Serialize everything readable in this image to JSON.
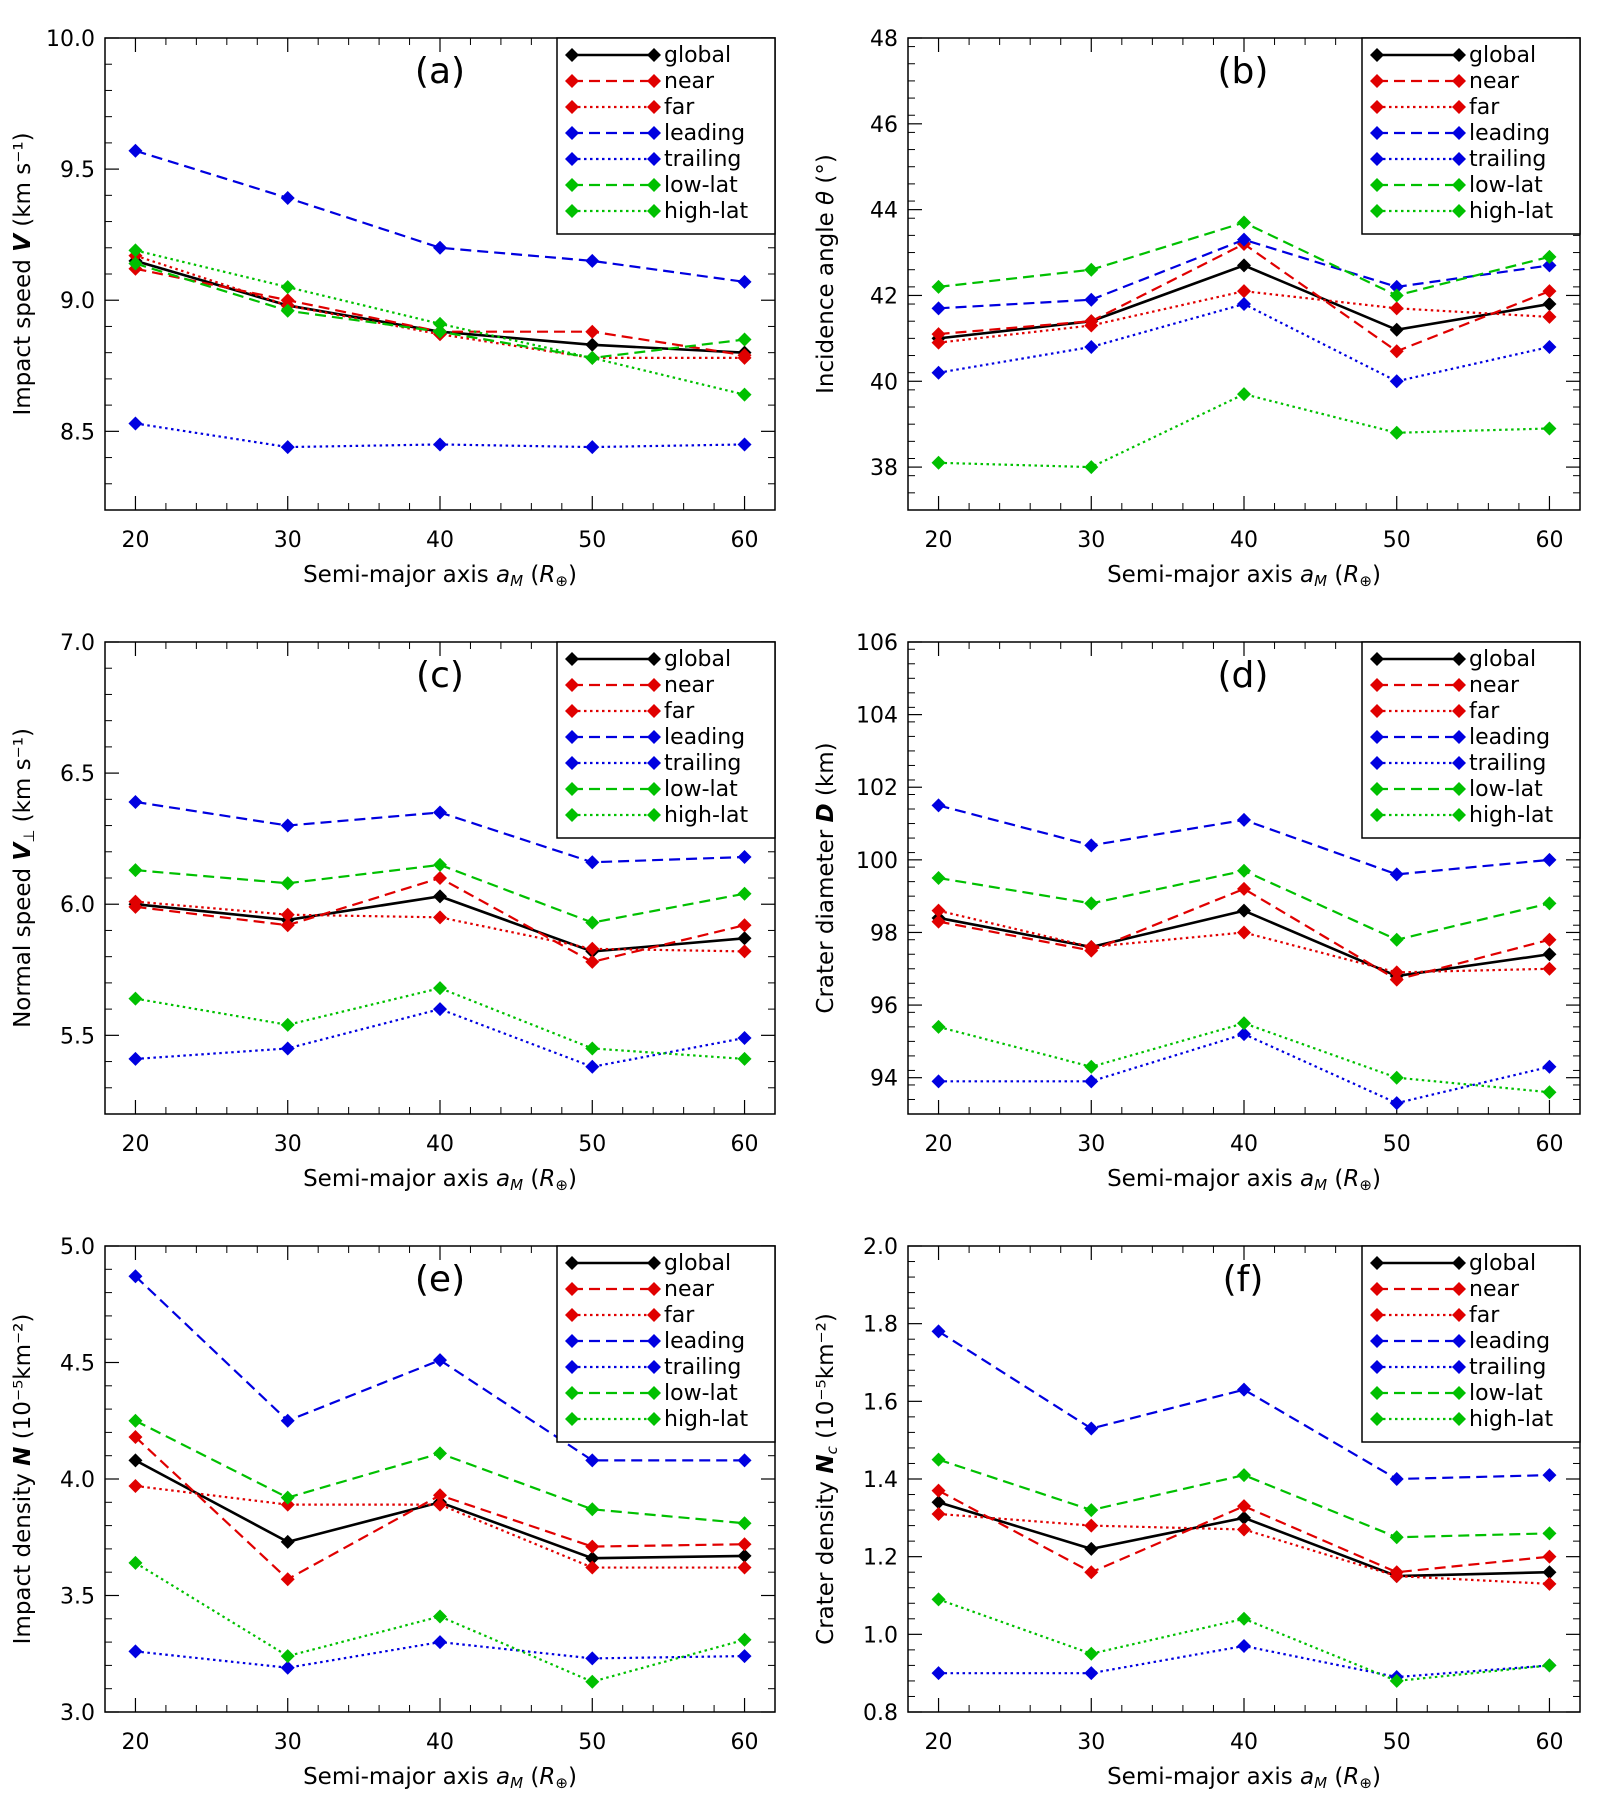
{
  "figure": {
    "legend_placement": "top-right",
    "series_styles": [
      {
        "name": "global",
        "color": "#000000",
        "dash": "solid"
      },
      {
        "name": "near",
        "color": "#e00000",
        "dash": "dashed"
      },
      {
        "name": "far",
        "color": "#e00000",
        "dash": "dotted"
      },
      {
        "name": "leading",
        "color": "#0000e0",
        "dash": "dashed"
      },
      {
        "name": "trailing",
        "color": "#0000e0",
        "dash": "dotted"
      },
      {
        "name": "low-lat",
        "color": "#00c000",
        "dash": "dashed"
      },
      {
        "name": "high-lat",
        "color": "#00c000",
        "dash": "dotted"
      }
    ]
  },
  "chart_data": [
    {
      "type": "line",
      "panel": "(a)",
      "xlabel": "Semi-major axis a_M (R_⊕)",
      "ylabel": "Impact speed V (km s⁻¹)",
      "x": [
        20,
        30,
        40,
        50,
        60
      ],
      "xlim": [
        18,
        62
      ],
      "ylim": [
        8.2,
        10.0
      ],
      "xticks": [
        "20",
        "30",
        "40",
        "50",
        "60"
      ],
      "yticks": [
        "8.5",
        "9.0",
        "9.5",
        "10.0"
      ],
      "series": [
        {
          "name": "global",
          "values": [
            9.15,
            8.98,
            8.88,
            8.83,
            8.8
          ]
        },
        {
          "name": "near",
          "values": [
            9.12,
            9.0,
            8.88,
            8.88,
            8.79
          ]
        },
        {
          "name": "far",
          "values": [
            9.17,
            8.98,
            8.87,
            8.78,
            8.78
          ]
        },
        {
          "name": "leading",
          "values": [
            9.57,
            9.39,
            9.2,
            9.15,
            9.07
          ]
        },
        {
          "name": "trailing",
          "values": [
            8.53,
            8.44,
            8.45,
            8.44,
            8.45
          ]
        },
        {
          "name": "low-lat",
          "values": [
            9.14,
            8.96,
            8.88,
            8.78,
            8.85
          ]
        },
        {
          "name": "high-lat",
          "values": [
            9.19,
            9.05,
            8.91,
            8.78,
            8.64
          ]
        }
      ]
    },
    {
      "type": "line",
      "panel": "(b)",
      "xlabel": "Semi-major axis a_M (R_⊕)",
      "ylabel": "Incidence angle θ (°)",
      "x": [
        20,
        30,
        40,
        50,
        60
      ],
      "xlim": [
        18,
        62
      ],
      "ylim": [
        37,
        48
      ],
      "xticks": [
        "20",
        "30",
        "40",
        "50",
        "60"
      ],
      "yticks": [
        "38",
        "40",
        "42",
        "44",
        "46",
        "48"
      ],
      "series": [
        {
          "name": "global",
          "values": [
            41.0,
            41.4,
            42.7,
            41.2,
            41.8
          ]
        },
        {
          "name": "near",
          "values": [
            41.1,
            41.4,
            43.2,
            40.7,
            42.1
          ]
        },
        {
          "name": "far",
          "values": [
            40.9,
            41.3,
            42.1,
            41.7,
            41.5
          ]
        },
        {
          "name": "leading",
          "values": [
            41.7,
            41.9,
            43.3,
            42.2,
            42.7
          ]
        },
        {
          "name": "trailing",
          "values": [
            40.2,
            40.8,
            41.8,
            40.0,
            40.8
          ]
        },
        {
          "name": "low-lat",
          "values": [
            42.2,
            42.6,
            43.7,
            42.0,
            42.9
          ]
        },
        {
          "name": "high-lat",
          "values": [
            38.1,
            38.0,
            39.7,
            38.8,
            38.9
          ]
        }
      ]
    },
    {
      "type": "line",
      "panel": "(c)",
      "xlabel": "Semi-major axis a_M (R_⊕)",
      "ylabel": "Normal speed V⊥ (km s⁻¹)",
      "x": [
        20,
        30,
        40,
        50,
        60
      ],
      "xlim": [
        18,
        62
      ],
      "ylim": [
        5.2,
        7.0
      ],
      "xticks": [
        "20",
        "30",
        "40",
        "50",
        "60"
      ],
      "yticks": [
        "5.5",
        "6.0",
        "6.5",
        "7.0"
      ],
      "series": [
        {
          "name": "global",
          "values": [
            6.0,
            5.94,
            6.03,
            5.82,
            5.87
          ]
        },
        {
          "name": "near",
          "values": [
            5.99,
            5.92,
            6.1,
            5.78,
            5.92
          ]
        },
        {
          "name": "far",
          "values": [
            6.01,
            5.96,
            5.95,
            5.83,
            5.82
          ]
        },
        {
          "name": "leading",
          "values": [
            6.39,
            6.3,
            6.35,
            6.16,
            6.18
          ]
        },
        {
          "name": "trailing",
          "values": [
            5.41,
            5.45,
            5.6,
            5.38,
            5.49
          ]
        },
        {
          "name": "low-lat",
          "values": [
            6.13,
            6.08,
            6.15,
            5.93,
            6.04
          ]
        },
        {
          "name": "high-lat",
          "values": [
            5.64,
            5.54,
            5.68,
            5.45,
            5.41
          ]
        }
      ]
    },
    {
      "type": "line",
      "panel": "(d)",
      "xlabel": "Semi-major axis a_M (R_⊕)",
      "ylabel": "Crater diameter D (km)",
      "x": [
        20,
        30,
        40,
        50,
        60
      ],
      "xlim": [
        18,
        62
      ],
      "ylim": [
        93,
        106
      ],
      "xticks": [
        "20",
        "30",
        "40",
        "50",
        "60"
      ],
      "yticks": [
        "94",
        "96",
        "98",
        "100",
        "102",
        "104",
        "106"
      ],
      "series": [
        {
          "name": "global",
          "values": [
            98.4,
            97.6,
            98.6,
            96.8,
            97.4
          ]
        },
        {
          "name": "near",
          "values": [
            98.3,
            97.5,
            99.2,
            96.7,
            97.8
          ]
        },
        {
          "name": "far",
          "values": [
            98.6,
            97.6,
            98.0,
            96.9,
            97.0
          ]
        },
        {
          "name": "leading",
          "values": [
            101.5,
            100.4,
            101.1,
            99.6,
            100.0
          ]
        },
        {
          "name": "trailing",
          "values": [
            93.9,
            93.9,
            95.2,
            93.3,
            94.3
          ]
        },
        {
          "name": "low-lat",
          "values": [
            99.5,
            98.8,
            99.7,
            97.8,
            98.8
          ]
        },
        {
          "name": "high-lat",
          "values": [
            95.4,
            94.3,
            95.5,
            94.0,
            93.6
          ]
        }
      ]
    },
    {
      "type": "line",
      "panel": "(e)",
      "xlabel": "Semi-major axis a_M (R_⊕)",
      "ylabel": "Impact density N (10⁻⁵km⁻²)",
      "x": [
        20,
        30,
        40,
        50,
        60
      ],
      "xlim": [
        18,
        62
      ],
      "ylim": [
        3.0,
        5.0
      ],
      "xticks": [
        "20",
        "30",
        "40",
        "50",
        "60"
      ],
      "yticks": [
        "3.0",
        "3.5",
        "4.0",
        "4.5",
        "5.0"
      ],
      "series": [
        {
          "name": "global",
          "values": [
            4.08,
            3.73,
            3.9,
            3.66,
            3.67
          ]
        },
        {
          "name": "near",
          "values": [
            4.18,
            3.57,
            3.93,
            3.71,
            3.72
          ]
        },
        {
          "name": "far",
          "values": [
            3.97,
            3.89,
            3.89,
            3.62,
            3.62
          ]
        },
        {
          "name": "leading",
          "values": [
            4.87,
            4.25,
            4.51,
            4.08,
            4.08
          ]
        },
        {
          "name": "trailing",
          "values": [
            3.26,
            3.19,
            3.3,
            3.23,
            3.24
          ]
        },
        {
          "name": "low-lat",
          "values": [
            4.25,
            3.92,
            4.11,
            3.87,
            3.81
          ]
        },
        {
          "name": "high-lat",
          "values": [
            3.64,
            3.24,
            3.41,
            3.13,
            3.31
          ]
        }
      ]
    },
    {
      "type": "line",
      "panel": "(f)",
      "xlabel": "Semi-major axis a_M (R_⊕)",
      "ylabel": "Crater density N_c (10⁻⁵km⁻²)",
      "x": [
        20,
        30,
        40,
        50,
        60
      ],
      "xlim": [
        18,
        62
      ],
      "ylim": [
        0.8,
        2.0
      ],
      "xticks": [
        "20",
        "30",
        "40",
        "50",
        "60"
      ],
      "yticks": [
        "0.8",
        "1.0",
        "1.2",
        "1.4",
        "1.6",
        "1.8",
        "2.0"
      ],
      "series": [
        {
          "name": "global",
          "values": [
            1.34,
            1.22,
            1.3,
            1.15,
            1.16
          ]
        },
        {
          "name": "near",
          "values": [
            1.37,
            1.16,
            1.33,
            1.16,
            1.2
          ]
        },
        {
          "name": "far",
          "values": [
            1.31,
            1.28,
            1.27,
            1.15,
            1.13
          ]
        },
        {
          "name": "leading",
          "values": [
            1.78,
            1.53,
            1.63,
            1.4,
            1.41
          ]
        },
        {
          "name": "trailing",
          "values": [
            0.9,
            0.9,
            0.97,
            0.89,
            0.92
          ]
        },
        {
          "name": "low-lat",
          "values": [
            1.45,
            1.32,
            1.41,
            1.25,
            1.26
          ]
        },
        {
          "name": "high-lat",
          "values": [
            1.09,
            0.95,
            1.04,
            0.88,
            0.92
          ]
        }
      ]
    }
  ]
}
